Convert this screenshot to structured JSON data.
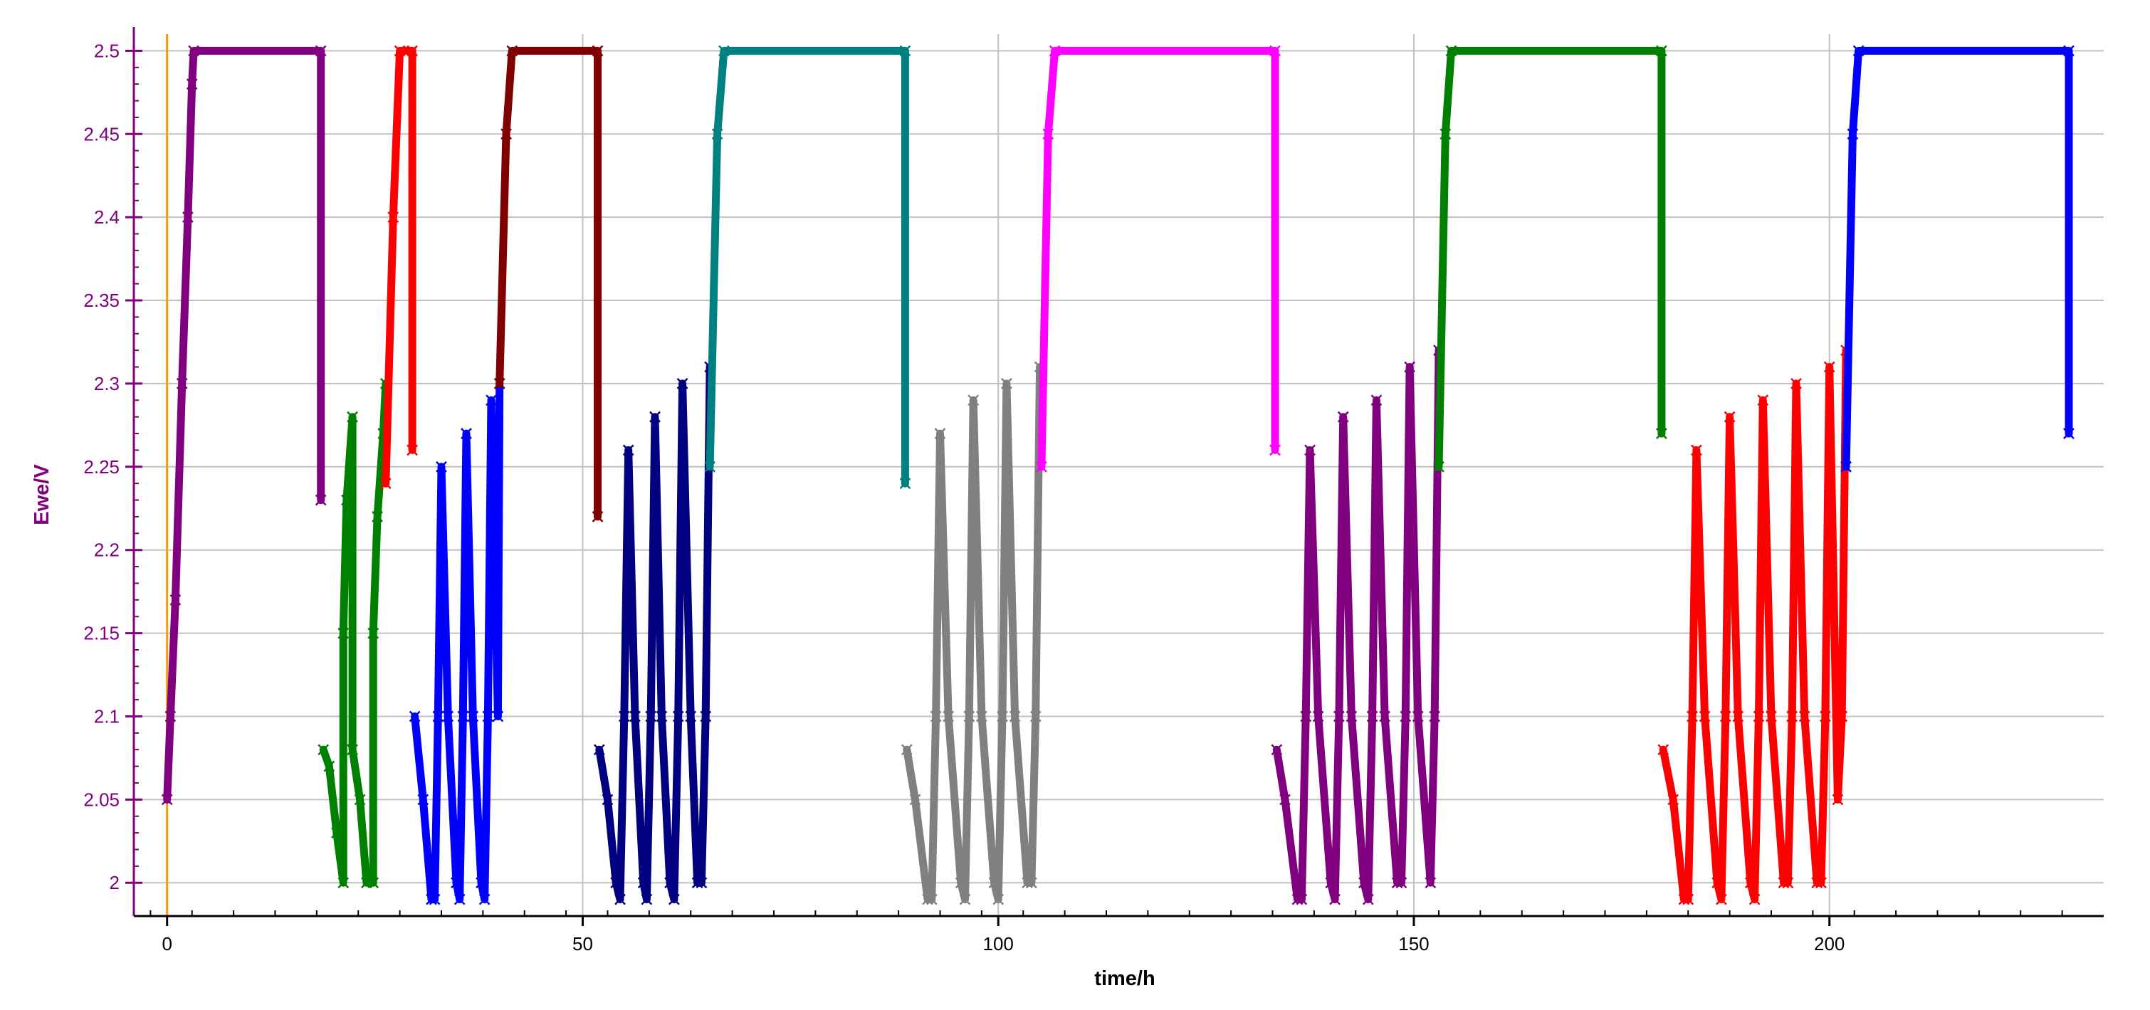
{
  "chart_data": {
    "type": "scatter",
    "title": "",
    "xlabel": "time/h",
    "ylabel": "Ewe/V",
    "xlim": [
      -4,
      233
    ],
    "ylim": [
      1.98,
      2.51
    ],
    "xticks": [
      0,
      50,
      100,
      150,
      200
    ],
    "xtick_labels": [
      "0",
      "50",
      "100",
      "150",
      "200"
    ],
    "yticks": [
      2,
      2.05,
      2.1,
      2.15,
      2.2,
      2.25,
      2.3,
      2.35,
      2.4,
      2.45,
      2.5
    ],
    "ytick_labels": [
      "2",
      "2.05",
      "2.1",
      "2.15",
      "2.2",
      "2.25",
      "2.3",
      "2.35",
      "2.4",
      "2.45",
      "2.5"
    ],
    "grid": true,
    "marker": "x",
    "colors": {
      "axis_text_y": "#800080",
      "axis_text_x": "#000000",
      "grid": "#c0c0c0",
      "zero_line": "#ff9900"
    },
    "series": [
      {
        "color": "#800080",
        "x": [
          0,
          0.4,
          1,
          1.8,
          2.5,
          3,
          3.2,
          18.5,
          18.5
        ],
        "y": [
          2.05,
          2.1,
          2.17,
          2.3,
          2.4,
          2.48,
          2.5,
          2.5,
          2.23
        ]
      },
      {
        "color": "#008000",
        "x": [
          18.8,
          19.5,
          20.4,
          21.2,
          21.2,
          21.6,
          22.3,
          22.3,
          23.2,
          24,
          24.8,
          24.8,
          25.3,
          26,
          26.3
        ],
        "y": [
          2.08,
          2.07,
          2.03,
          2.0,
          2.15,
          2.23,
          2.28,
          2.08,
          2.05,
          2.0,
          2.0,
          2.15,
          2.22,
          2.27,
          2.3
        ]
      },
      {
        "color": "#ff0000",
        "x": [
          26.3,
          27.2,
          28,
          29.5,
          29.5
        ],
        "y": [
          2.24,
          2.4,
          2.5,
          2.5,
          2.26
        ]
      },
      {
        "color": "#0000ff",
        "x": [
          29.8,
          30.8,
          31.8,
          32.2,
          32.6,
          33,
          33.8,
          34.8,
          35.2,
          35.6,
          36,
          36.8,
          37.8,
          38.2,
          38.6,
          39,
          39.8,
          40
        ],
        "y": [
          2.1,
          2.05,
          1.99,
          1.99,
          2.1,
          2.25,
          2.1,
          2.0,
          1.99,
          2.1,
          2.27,
          2.1,
          2.0,
          1.99,
          2.1,
          2.29,
          2.1,
          2.3
        ]
      },
      {
        "color": "#800000",
        "x": [
          40,
          40.8,
          41.5,
          51.8,
          51.8
        ],
        "y": [
          2.3,
          2.45,
          2.5,
          2.5,
          2.22
        ]
      },
      {
        "color": "#000080",
        "x": [
          52,
          53,
          54,
          54.5,
          55,
          55.5,
          56.3,
          57.3,
          57.7,
          58.2,
          58.7,
          59.5,
          60.5,
          61,
          61.5,
          62,
          63,
          63.8,
          64.3,
          64.8,
          65.3
        ],
        "y": [
          2.08,
          2.05,
          2.0,
          1.99,
          2.1,
          2.26,
          2.1,
          2.0,
          1.99,
          2.1,
          2.28,
          2.1,
          2.0,
          1.99,
          2.1,
          2.3,
          2.1,
          2.0,
          2.0,
          2.1,
          2.31
        ]
      },
      {
        "color": "#008080",
        "x": [
          65.3,
          66.2,
          67,
          88.8,
          88.8
        ],
        "y": [
          2.25,
          2.45,
          2.5,
          2.5,
          2.24
        ]
      },
      {
        "color": "#808080",
        "x": [
          89,
          90,
          91.5,
          92,
          92.5,
          93,
          94,
          95.5,
          96,
          96.5,
          97,
          98,
          99.5,
          100,
          100.5,
          101,
          102,
          103.5,
          104,
          104.5,
          105
        ],
        "y": [
          2.08,
          2.05,
          1.99,
          1.99,
          2.1,
          2.27,
          2.1,
          2.0,
          1.99,
          2.1,
          2.29,
          2.1,
          2.0,
          1.99,
          2.1,
          2.3,
          2.1,
          2.0,
          2.0,
          2.1,
          2.31
        ]
      },
      {
        "color": "#ff00ff",
        "x": [
          105.2,
          106,
          106.8,
          133.3,
          133.3
        ],
        "y": [
          2.25,
          2.45,
          2.5,
          2.5,
          2.26
        ]
      },
      {
        "color": "#800080",
        "x": [
          133.5,
          134.5,
          136,
          136.5,
          137,
          137.5,
          138.5,
          140,
          140.5,
          141,
          141.5,
          142.5,
          144,
          144.5,
          145,
          145.5,
          146.5,
          148,
          148.5,
          149,
          149.5,
          150.5,
          152,
          152.5,
          153
        ],
        "y": [
          2.08,
          2.05,
          1.99,
          1.99,
          2.1,
          2.26,
          2.1,
          2.0,
          1.99,
          2.1,
          2.28,
          2.1,
          2.0,
          1.99,
          2.1,
          2.29,
          2.1,
          2.0,
          2.0,
          2.1,
          2.31,
          2.1,
          2.0,
          2.1,
          2.32
        ]
      },
      {
        "color": "#008000",
        "x": [
          153,
          153.8,
          154.5,
          179.8,
          179.8
        ],
        "y": [
          2.25,
          2.45,
          2.5,
          2.5,
          2.27
        ]
      },
      {
        "color": "#ff0000",
        "x": [
          180,
          181.2,
          182.5,
          183,
          183.5,
          184,
          185,
          186.5,
          187,
          187.5,
          188,
          189,
          190.5,
          191,
          191.5,
          192,
          193,
          194.5,
          195,
          195.5,
          196,
          197,
          198.5,
          199,
          199.5,
          200,
          201,
          201.5,
          202
        ],
        "y": [
          2.08,
          2.05,
          1.99,
          1.99,
          2.1,
          2.26,
          2.1,
          2.0,
          1.99,
          2.1,
          2.28,
          2.1,
          2.0,
          1.99,
          2.1,
          2.29,
          2.1,
          2.0,
          2.0,
          2.1,
          2.3,
          2.1,
          2.0,
          2.0,
          2.1,
          2.31,
          2.05,
          2.1,
          2.32
        ]
      },
      {
        "color": "#0000ff",
        "x": [
          202,
          202.8,
          203.5,
          228.8,
          228.8
        ],
        "y": [
          2.25,
          2.45,
          2.5,
          2.5,
          2.27
        ]
      }
    ]
  }
}
